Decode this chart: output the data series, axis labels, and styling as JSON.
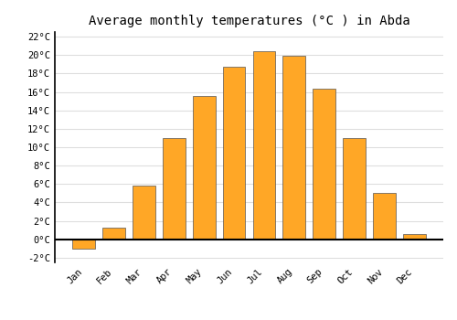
{
  "title": "Average monthly temperatures (°C ) in Abda",
  "months": [
    "Jan",
    "Feb",
    "Mar",
    "Apr",
    "May",
    "Jun",
    "Jul",
    "Aug",
    "Sep",
    "Oct",
    "Nov",
    "Dec"
  ],
  "values": [
    -1.0,
    1.3,
    5.8,
    11.0,
    15.6,
    18.7,
    20.4,
    19.9,
    16.3,
    11.0,
    5.0,
    0.6
  ],
  "bar_color": "#FFA726",
  "bar_edge_color": "#555555",
  "background_color": "#ffffff",
  "grid_color": "#dddddd",
  "ylim": [
    -2.5,
    22.5
  ],
  "yticks": [
    -2,
    0,
    2,
    4,
    6,
    8,
    10,
    12,
    14,
    16,
    18,
    20,
    22
  ],
  "ytick_labels": [
    "-2°C",
    "0°C",
    "2°C",
    "4°C",
    "6°C",
    "8°C",
    "10°C",
    "12°C",
    "14°C",
    "16°C",
    "18°C",
    "20°C",
    "22°C"
  ],
  "title_fontsize": 10,
  "tick_fontsize": 7.5,
  "font_family": "monospace",
  "bar_width": 0.75
}
